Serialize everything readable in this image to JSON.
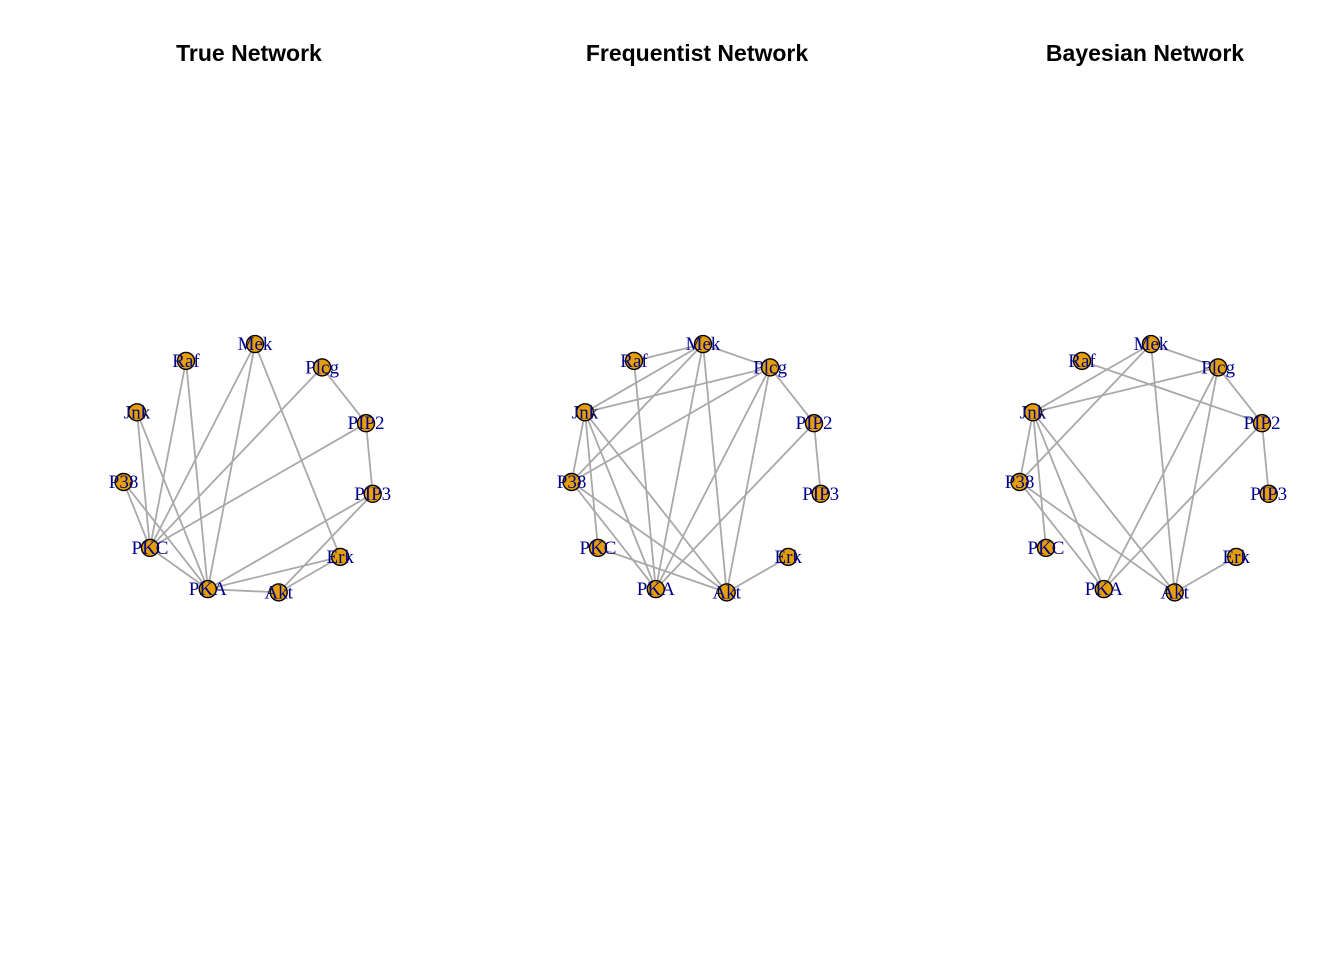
{
  "nodes": [
    "Raf",
    "Mek",
    "Plcg",
    "PIP2",
    "PIP3",
    "Erk",
    "Akt",
    "PKA",
    "PKC",
    "P38",
    "Jnk"
  ],
  "colors": {
    "node_fill": "#E69F00",
    "node_border": "#000000",
    "edge": "#A9A9A9",
    "label": "#00008B",
    "background": "#FFFFFF"
  },
  "panels": [
    {
      "title": "True Network",
      "edges": [
        [
          "Raf",
          "PKA"
        ],
        [
          "Raf",
          "PKC"
        ],
        [
          "Mek",
          "Erk"
        ],
        [
          "Mek",
          "PKA"
        ],
        [
          "Mek",
          "PKC"
        ],
        [
          "Plcg",
          "PIP2"
        ],
        [
          "Plcg",
          "PKC"
        ],
        [
          "PIP2",
          "PIP3"
        ],
        [
          "PIP2",
          "PKC"
        ],
        [
          "PIP3",
          "Akt"
        ],
        [
          "PIP3",
          "PKA"
        ],
        [
          "Erk",
          "Akt"
        ],
        [
          "Erk",
          "PKA"
        ],
        [
          "Akt",
          "PKA"
        ],
        [
          "PKA",
          "PKC"
        ],
        [
          "PKA",
          "P38"
        ],
        [
          "PKA",
          "Jnk"
        ],
        [
          "PKC",
          "P38"
        ],
        [
          "PKC",
          "Jnk"
        ]
      ]
    },
    {
      "title": "Frequentist Network",
      "edges": [
        [
          "Raf",
          "Mek"
        ],
        [
          "Raf",
          "PKA"
        ],
        [
          "Mek",
          "Plcg"
        ],
        [
          "Mek",
          "Jnk"
        ],
        [
          "Mek",
          "P38"
        ],
        [
          "Mek",
          "Akt"
        ],
        [
          "Mek",
          "PKA"
        ],
        [
          "Plcg",
          "PIP2"
        ],
        [
          "Plcg",
          "Jnk"
        ],
        [
          "Plcg",
          "P38"
        ],
        [
          "Plcg",
          "Akt"
        ],
        [
          "Plcg",
          "PKA"
        ],
        [
          "PIP2",
          "PIP3"
        ],
        [
          "PIP2",
          "PKA"
        ],
        [
          "Erk",
          "Akt"
        ],
        [
          "Akt",
          "Jnk"
        ],
        [
          "Akt",
          "P38"
        ],
        [
          "Akt",
          "PKC"
        ],
        [
          "PKA",
          "Jnk"
        ],
        [
          "PKA",
          "P38"
        ],
        [
          "PKC",
          "Jnk"
        ],
        [
          "P38",
          "Jnk"
        ]
      ]
    },
    {
      "title": "Bayesian Network",
      "edges": [
        [
          "Raf",
          "PIP2"
        ],
        [
          "Mek",
          "Plcg"
        ],
        [
          "Mek",
          "Jnk"
        ],
        [
          "Mek",
          "P38"
        ],
        [
          "Mek",
          "Akt"
        ],
        [
          "Plcg",
          "PIP2"
        ],
        [
          "Plcg",
          "Jnk"
        ],
        [
          "Plcg",
          "Akt"
        ],
        [
          "Plcg",
          "PKA"
        ],
        [
          "PIP2",
          "PIP3"
        ],
        [
          "PIP2",
          "PKA"
        ],
        [
          "Erk",
          "Akt"
        ],
        [
          "Akt",
          "Jnk"
        ],
        [
          "Akt",
          "P38"
        ],
        [
          "PKA",
          "Jnk"
        ],
        [
          "PKA",
          "P38"
        ],
        [
          "PKC",
          "Jnk"
        ],
        [
          "P38",
          "Jnk"
        ]
      ]
    }
  ]
}
